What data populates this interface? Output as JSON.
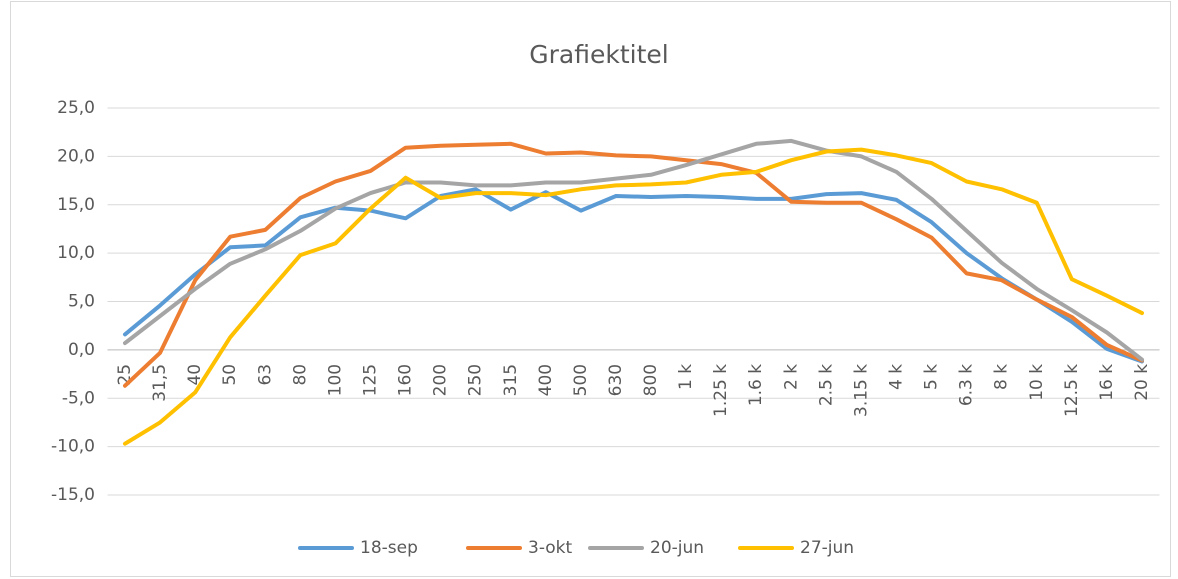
{
  "chart_data": {
    "type": "line",
    "title": "Grafiektitel",
    "categories": [
      "25",
      "31,5",
      "40",
      "50",
      "63",
      "80",
      "100",
      "125",
      "160",
      "200",
      "250",
      "315",
      "400",
      "500",
      "630",
      "800",
      "1 k",
      "1.25 k",
      "1.6 k",
      "2 k",
      "2.5 k",
      "3.15 k",
      "4 k",
      "5 k",
      "6.3 k",
      "8 k",
      "10 k",
      "12.5 k",
      "16 k",
      "20 k"
    ],
    "series": [
      {
        "name": "18-sep",
        "color": "#5b9bd5",
        "values": [
          1.6,
          4.6,
          7.8,
          10.6,
          10.8,
          13.7,
          14.7,
          14.4,
          13.6,
          15.9,
          16.6,
          14.5,
          16.3,
          14.4,
          15.9,
          15.8,
          15.9,
          15.8,
          15.6,
          15.6,
          16.1,
          16.2,
          15.5,
          13.2,
          10.0,
          7.4,
          5.2,
          2.9,
          0.1,
          -1.2
        ]
      },
      {
        "name": "3-okt",
        "color": "#ed7d31",
        "values": [
          -3.7,
          -0.3,
          7.2,
          11.7,
          12.4,
          15.7,
          17.4,
          18.5,
          20.9,
          21.1,
          21.2,
          21.3,
          20.3,
          20.4,
          20.1,
          20.0,
          19.6,
          19.2,
          18.3,
          15.3,
          15.2,
          15.2,
          13.5,
          11.6,
          7.9,
          7.2,
          5.2,
          3.4,
          0.5,
          -1.1
        ]
      },
      {
        "name": "20-jun",
        "color": "#a5a5a5",
        "values": [
          0.7,
          3.5,
          6.3,
          8.9,
          10.4,
          12.3,
          14.6,
          16.2,
          17.3,
          17.3,
          17.0,
          17.0,
          17.3,
          17.3,
          17.7,
          18.1,
          19.1,
          20.2,
          21.3,
          21.6,
          20.6,
          20.0,
          18.4,
          15.6,
          12.3,
          9.0,
          6.3,
          4.1,
          1.8,
          -1.0
        ]
      },
      {
        "name": "27-jun",
        "color": "#ffc000",
        "values": [
          -9.7,
          -7.5,
          -4.4,
          1.3,
          5.6,
          9.8,
          11.0,
          14.6,
          17.8,
          15.7,
          16.2,
          16.2,
          16.0,
          16.6,
          17.0,
          17.1,
          17.3,
          18.1,
          18.4,
          19.6,
          20.5,
          20.7,
          20.1,
          19.3,
          17.4,
          16.6,
          15.2,
          7.3,
          5.6,
          3.8
        ]
      }
    ],
    "ylim": [
      -15,
      25
    ],
    "yticks": [
      {
        "value": -15,
        "label": "-15,0"
      },
      {
        "value": -10,
        "label": "-10,0"
      },
      {
        "value": -5,
        "label": "-5,0"
      },
      {
        "value": 0,
        "label": "0,0"
      },
      {
        "value": 5,
        "label": "5,0"
      },
      {
        "value": 10,
        "label": "10,0"
      },
      {
        "value": 15,
        "label": "15,0"
      },
      {
        "value": 20,
        "label": "20,0"
      },
      {
        "value": 25,
        "label": "25,0"
      }
    ],
    "grid": true,
    "legend": "bottom"
  }
}
